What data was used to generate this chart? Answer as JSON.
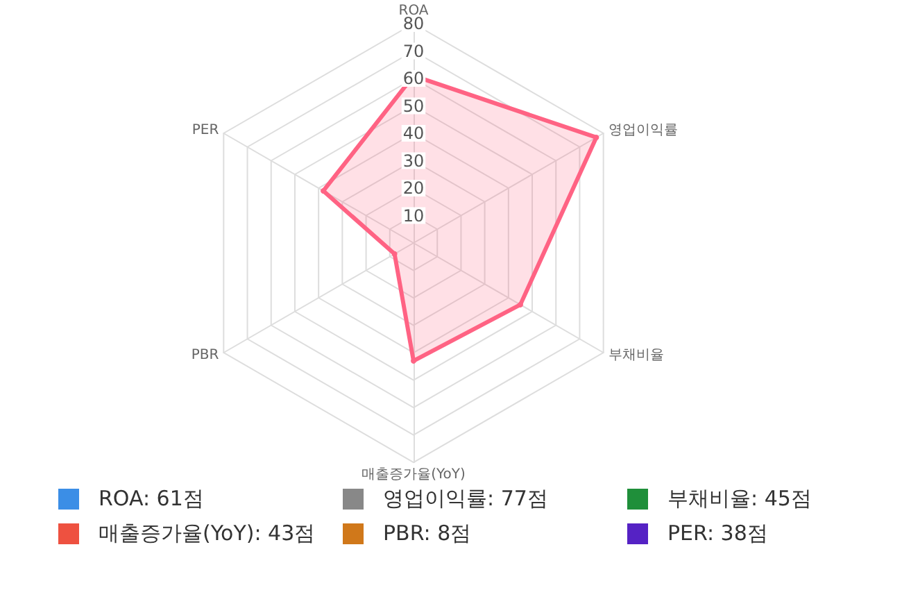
{
  "chart_data": {
    "type": "radar",
    "categories": [
      "ROA",
      "영업이익률",
      "부채비율",
      "매출증가율(YoY)",
      "PBR",
      "PER"
    ],
    "series": [
      {
        "color": "#ff6384",
        "values": [
          61,
          77,
          45,
          43,
          8,
          38
        ]
      }
    ],
    "ylim": [
      0,
      80
    ],
    "yticks": [
      10,
      20,
      30,
      40,
      50,
      60,
      70,
      80
    ],
    "grid": true,
    "marker": "circle",
    "value_labels": [
      "ROA: 61점",
      "영업이익률: 77점",
      "부채비율: 45점",
      "매출증가율(YoY): 43점",
      "PBR: 8점",
      "PER: 38점"
    ],
    "colors": [
      "#3b8ee6",
      "#888888",
      "#1f8f3a",
      "#ee5140",
      "#d0781a",
      "#5522c4"
    ]
  }
}
